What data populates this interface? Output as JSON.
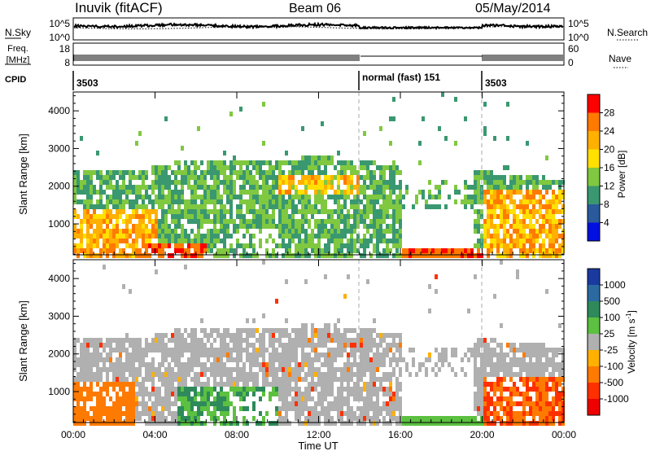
{
  "header": {
    "title": "Inuvik (fitACF)",
    "beam": "Beam 06",
    "date": "05/May/2014"
  },
  "strip": {
    "nsky_label": "N.Sky",
    "nsky_ticks": [
      "10^5",
      "10^0"
    ],
    "nsearch_label": "N.Search",
    "freq_label": "Freq.",
    "freq_unit": "[MHz]",
    "freq_ticks": [
      "18",
      "8"
    ],
    "nave_label": "Nave",
    "nave_ticks": [
      "60",
      "0"
    ],
    "cpid_label": "CPID",
    "cpid_segments": [
      "3503",
      "normal (fast) 151",
      "3503"
    ]
  },
  "chart_data": [
    {
      "type": "heatmap",
      "title": "",
      "xlabel": "Time UT",
      "ylabel": "Slant Range [km]",
      "x_ticks": [
        "00:00",
        "04:00",
        "08:00",
        "12:00",
        "16:00",
        "20:00",
        "00:00"
      ],
      "xlim_hours": [
        0,
        24
      ],
      "y_ticks": [
        1000,
        2000,
        3000,
        4000
      ],
      "ylim": [
        180,
        4500
      ],
      "colorbar_label": "Power [dB]",
      "colorbar_ticks": [
        "28",
        "24",
        "20",
        "16",
        "12",
        "8",
        "4"
      ],
      "colorbar_colors": [
        "#ff0000",
        "#ff7a00",
        "#ffb000",
        "#ffe000",
        "#80c840",
        "#3a9870",
        "#2a5a9c",
        "#0010e0"
      ],
      "mode_change_lines_hours": [
        14,
        20
      ]
    },
    {
      "type": "heatmap",
      "title": "",
      "xlabel": "Time UT",
      "ylabel": "Slant Range [km]",
      "x_ticks": [
        "00:00",
        "04:00",
        "08:00",
        "12:00",
        "16:00",
        "20:00",
        "00:00"
      ],
      "xlim_hours": [
        0,
        24
      ],
      "y_ticks": [
        1000,
        2000,
        3000,
        4000
      ],
      "ylim": [
        180,
        4500
      ],
      "colorbar_label": "Velocity [m s",
      "colorbar_label_sup": "-1",
      "colorbar_label_end": "]",
      "colorbar_ticks": [
        "1000",
        "500",
        "100",
        "25",
        "-25",
        "-100",
        "-500",
        "-1000"
      ],
      "colorbar_colors": [
        "#1a3aa0",
        "#2a6aa0",
        "#2e8a5a",
        "#5cc040",
        "#b0b0b0",
        "#ffb000",
        "#ff7a00",
        "#ff3000",
        "#ee0000"
      ],
      "mode_change_lines_hours": [
        14,
        20
      ]
    }
  ]
}
